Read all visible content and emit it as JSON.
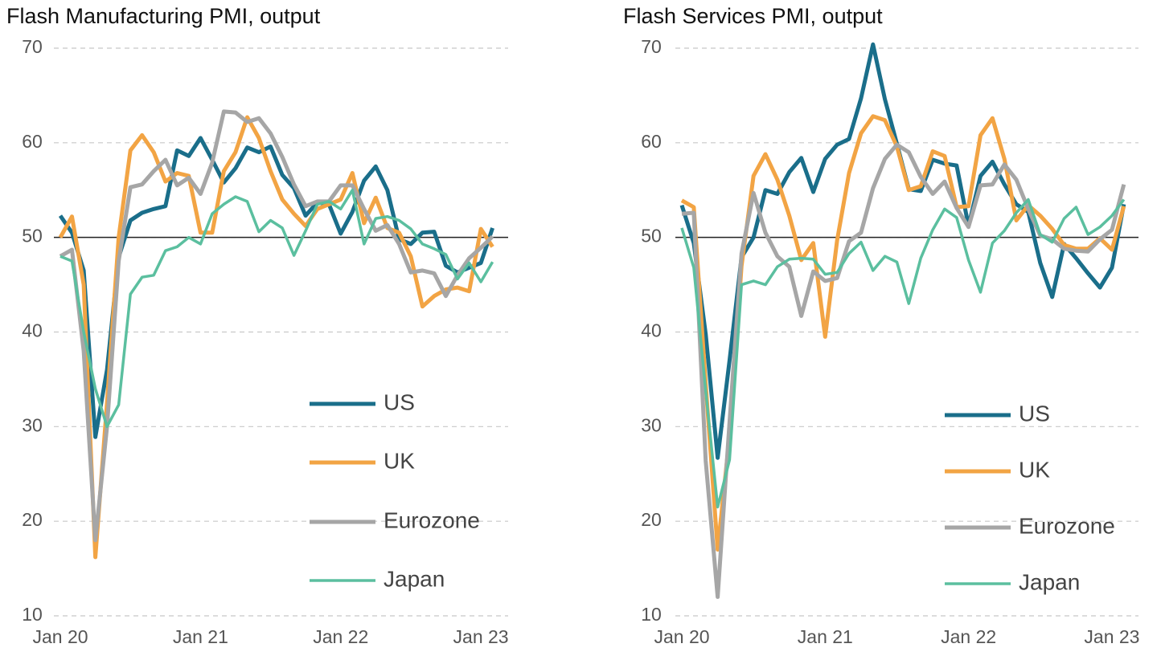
{
  "chart_data": [
    {
      "type": "line",
      "title": "Flash Manufacturing PMI, output",
      "categories": [
        "Jan 20",
        null,
        null,
        null,
        null,
        null,
        null,
        null,
        null,
        null,
        null,
        null,
        "Jan 21",
        null,
        null,
        null,
        null,
        null,
        null,
        null,
        null,
        null,
        null,
        null,
        "Jan 22",
        null,
        null,
        null,
        null,
        null,
        null,
        null,
        null,
        null,
        null,
        null,
        "Jan 23",
        null
      ],
      "ylim": [
        10,
        70
      ],
      "yticks": [
        10,
        20,
        30,
        40,
        50,
        60,
        70
      ],
      "grid": true,
      "hline": 50,
      "legend": "lower right",
      "series": [
        {
          "name": "US",
          "color": "#1a6e8a",
          "values": [
            52.3,
            50.5,
            46.5,
            28.9,
            36.0,
            47.9,
            51.8,
            52.6,
            53.0,
            53.3,
            59.2,
            58.6,
            60.5,
            58.2,
            55.8,
            57.3,
            59.5,
            59.0,
            59.6,
            56.6,
            55.2,
            52.3,
            53.7,
            53.5,
            50.4,
            52.7,
            56.0,
            57.5,
            55.0,
            49.8,
            49.3,
            50.5,
            50.6,
            47.0,
            46.3,
            46.8,
            47.3,
            51.0
          ]
        },
        {
          "name": "UK",
          "color": "#f2a444",
          "values": [
            50.0,
            52.2,
            45.0,
            16.2,
            32.5,
            50.0,
            59.2,
            60.8,
            59.0,
            55.9,
            56.8,
            56.5,
            50.5,
            50.5,
            57.0,
            59.0,
            62.7,
            60.5,
            57.0,
            54.0,
            52.5,
            51.2,
            53.0,
            53.5,
            54.0,
            56.8,
            51.5,
            54.2,
            51.0,
            50.5,
            48.0,
            42.7,
            43.8,
            44.5,
            44.7,
            44.3,
            50.9,
            49.0
          ]
        },
        {
          "name": "Eurozone",
          "color": "#a6a6a6",
          "values": [
            48.0,
            48.7,
            38.0,
            18.0,
            30.0,
            47.5,
            55.3,
            55.6,
            57.0,
            58.2,
            55.5,
            56.3,
            54.6,
            57.9,
            63.3,
            63.2,
            62.2,
            62.6,
            61.0,
            58.5,
            55.6,
            53.3,
            53.8,
            53.8,
            55.5,
            55.5,
            53.0,
            50.7,
            51.3,
            49.3,
            46.3,
            46.5,
            46.2,
            43.8,
            46.0,
            47.8,
            48.9,
            50.1
          ]
        },
        {
          "name": "Japan",
          "color": "#5bbf9f",
          "values": [
            48.0,
            47.5,
            40.0,
            34.0,
            30.0,
            32.3,
            44.0,
            45.8,
            46.0,
            48.6,
            49.0,
            50.0,
            49.3,
            52.5,
            53.5,
            54.3,
            53.8,
            50.6,
            51.8,
            51.0,
            48.1,
            50.7,
            53.5,
            53.8,
            53.0,
            55.0,
            49.3,
            52.0,
            52.2,
            51.8,
            50.9,
            49.3,
            48.8,
            48.2,
            45.6,
            47.3,
            45.3,
            47.4
          ]
        }
      ]
    },
    {
      "type": "line",
      "title": "Flash Services PMI, output",
      "categories": [
        "Jan 20",
        null,
        null,
        null,
        null,
        null,
        null,
        null,
        null,
        null,
        null,
        null,
        "Jan 21",
        null,
        null,
        null,
        null,
        null,
        null,
        null,
        null,
        null,
        null,
        null,
        "Jan 22",
        null,
        null,
        null,
        null,
        null,
        null,
        null,
        null,
        null,
        null,
        null,
        "Jan 23",
        null
      ],
      "ylim": [
        10,
        70
      ],
      "yticks": [
        10,
        20,
        30,
        40,
        50,
        60,
        70
      ],
      "grid": true,
      "hline": 50,
      "legend": "lower right",
      "series": [
        {
          "name": "US",
          "color": "#1a6e8a",
          "values": [
            53.4,
            49.4,
            39.8,
            26.7,
            37.0,
            47.9,
            50.0,
            55.0,
            54.6,
            56.9,
            58.4,
            54.8,
            58.3,
            59.8,
            60.4,
            64.7,
            70.4,
            64.6,
            59.9,
            55.1,
            54.9,
            58.2,
            57.8,
            57.6,
            51.2,
            56.5,
            58.0,
            55.6,
            53.5,
            52.7,
            47.3,
            43.7,
            49.3,
            47.8,
            46.2,
            44.7,
            46.8,
            53.5
          ]
        },
        {
          "name": "UK",
          "color": "#f2a444",
          "values": [
            53.9,
            53.2,
            34.5,
            17.0,
            29.0,
            47.0,
            56.5,
            58.8,
            56.1,
            52.3,
            47.6,
            49.4,
            39.5,
            49.7,
            56.8,
            61.0,
            62.8,
            62.4,
            59.6,
            55.0,
            55.4,
            59.1,
            58.6,
            53.2,
            53.3,
            60.8,
            62.6,
            58.3,
            51.8,
            53.4,
            52.3,
            50.9,
            49.2,
            48.8,
            48.8,
            49.9,
            48.7,
            53.3
          ]
        },
        {
          "name": "Eurozone",
          "color": "#a6a6a6",
          "values": [
            52.5,
            52.6,
            26.4,
            12.0,
            30.5,
            48.3,
            54.7,
            50.5,
            48.0,
            46.9,
            41.7,
            46.4,
            45.4,
            45.7,
            49.6,
            50.5,
            55.2,
            58.3,
            59.8,
            59.0,
            56.4,
            54.6,
            55.9,
            53.1,
            51.1,
            55.5,
            55.6,
            57.7,
            56.1,
            53.0,
            50.2,
            49.8,
            48.8,
            48.6,
            48.5,
            49.8,
            50.8,
            55.6
          ]
        },
        {
          "name": "Japan",
          "color": "#5bbf9f",
          "values": [
            51.0,
            46.8,
            33.8,
            21.5,
            26.5,
            45.0,
            45.4,
            45.0,
            46.9,
            47.7,
            47.8,
            47.7,
            46.1,
            46.3,
            48.3,
            49.5,
            46.5,
            48.0,
            47.4,
            43.0,
            47.8,
            50.8,
            53.0,
            52.1,
            47.6,
            44.2,
            49.4,
            50.7,
            52.6,
            54.0,
            50.3,
            49.5,
            52.0,
            53.2,
            50.3,
            51.1,
            52.3,
            54.0
          ]
        }
      ]
    }
  ]
}
